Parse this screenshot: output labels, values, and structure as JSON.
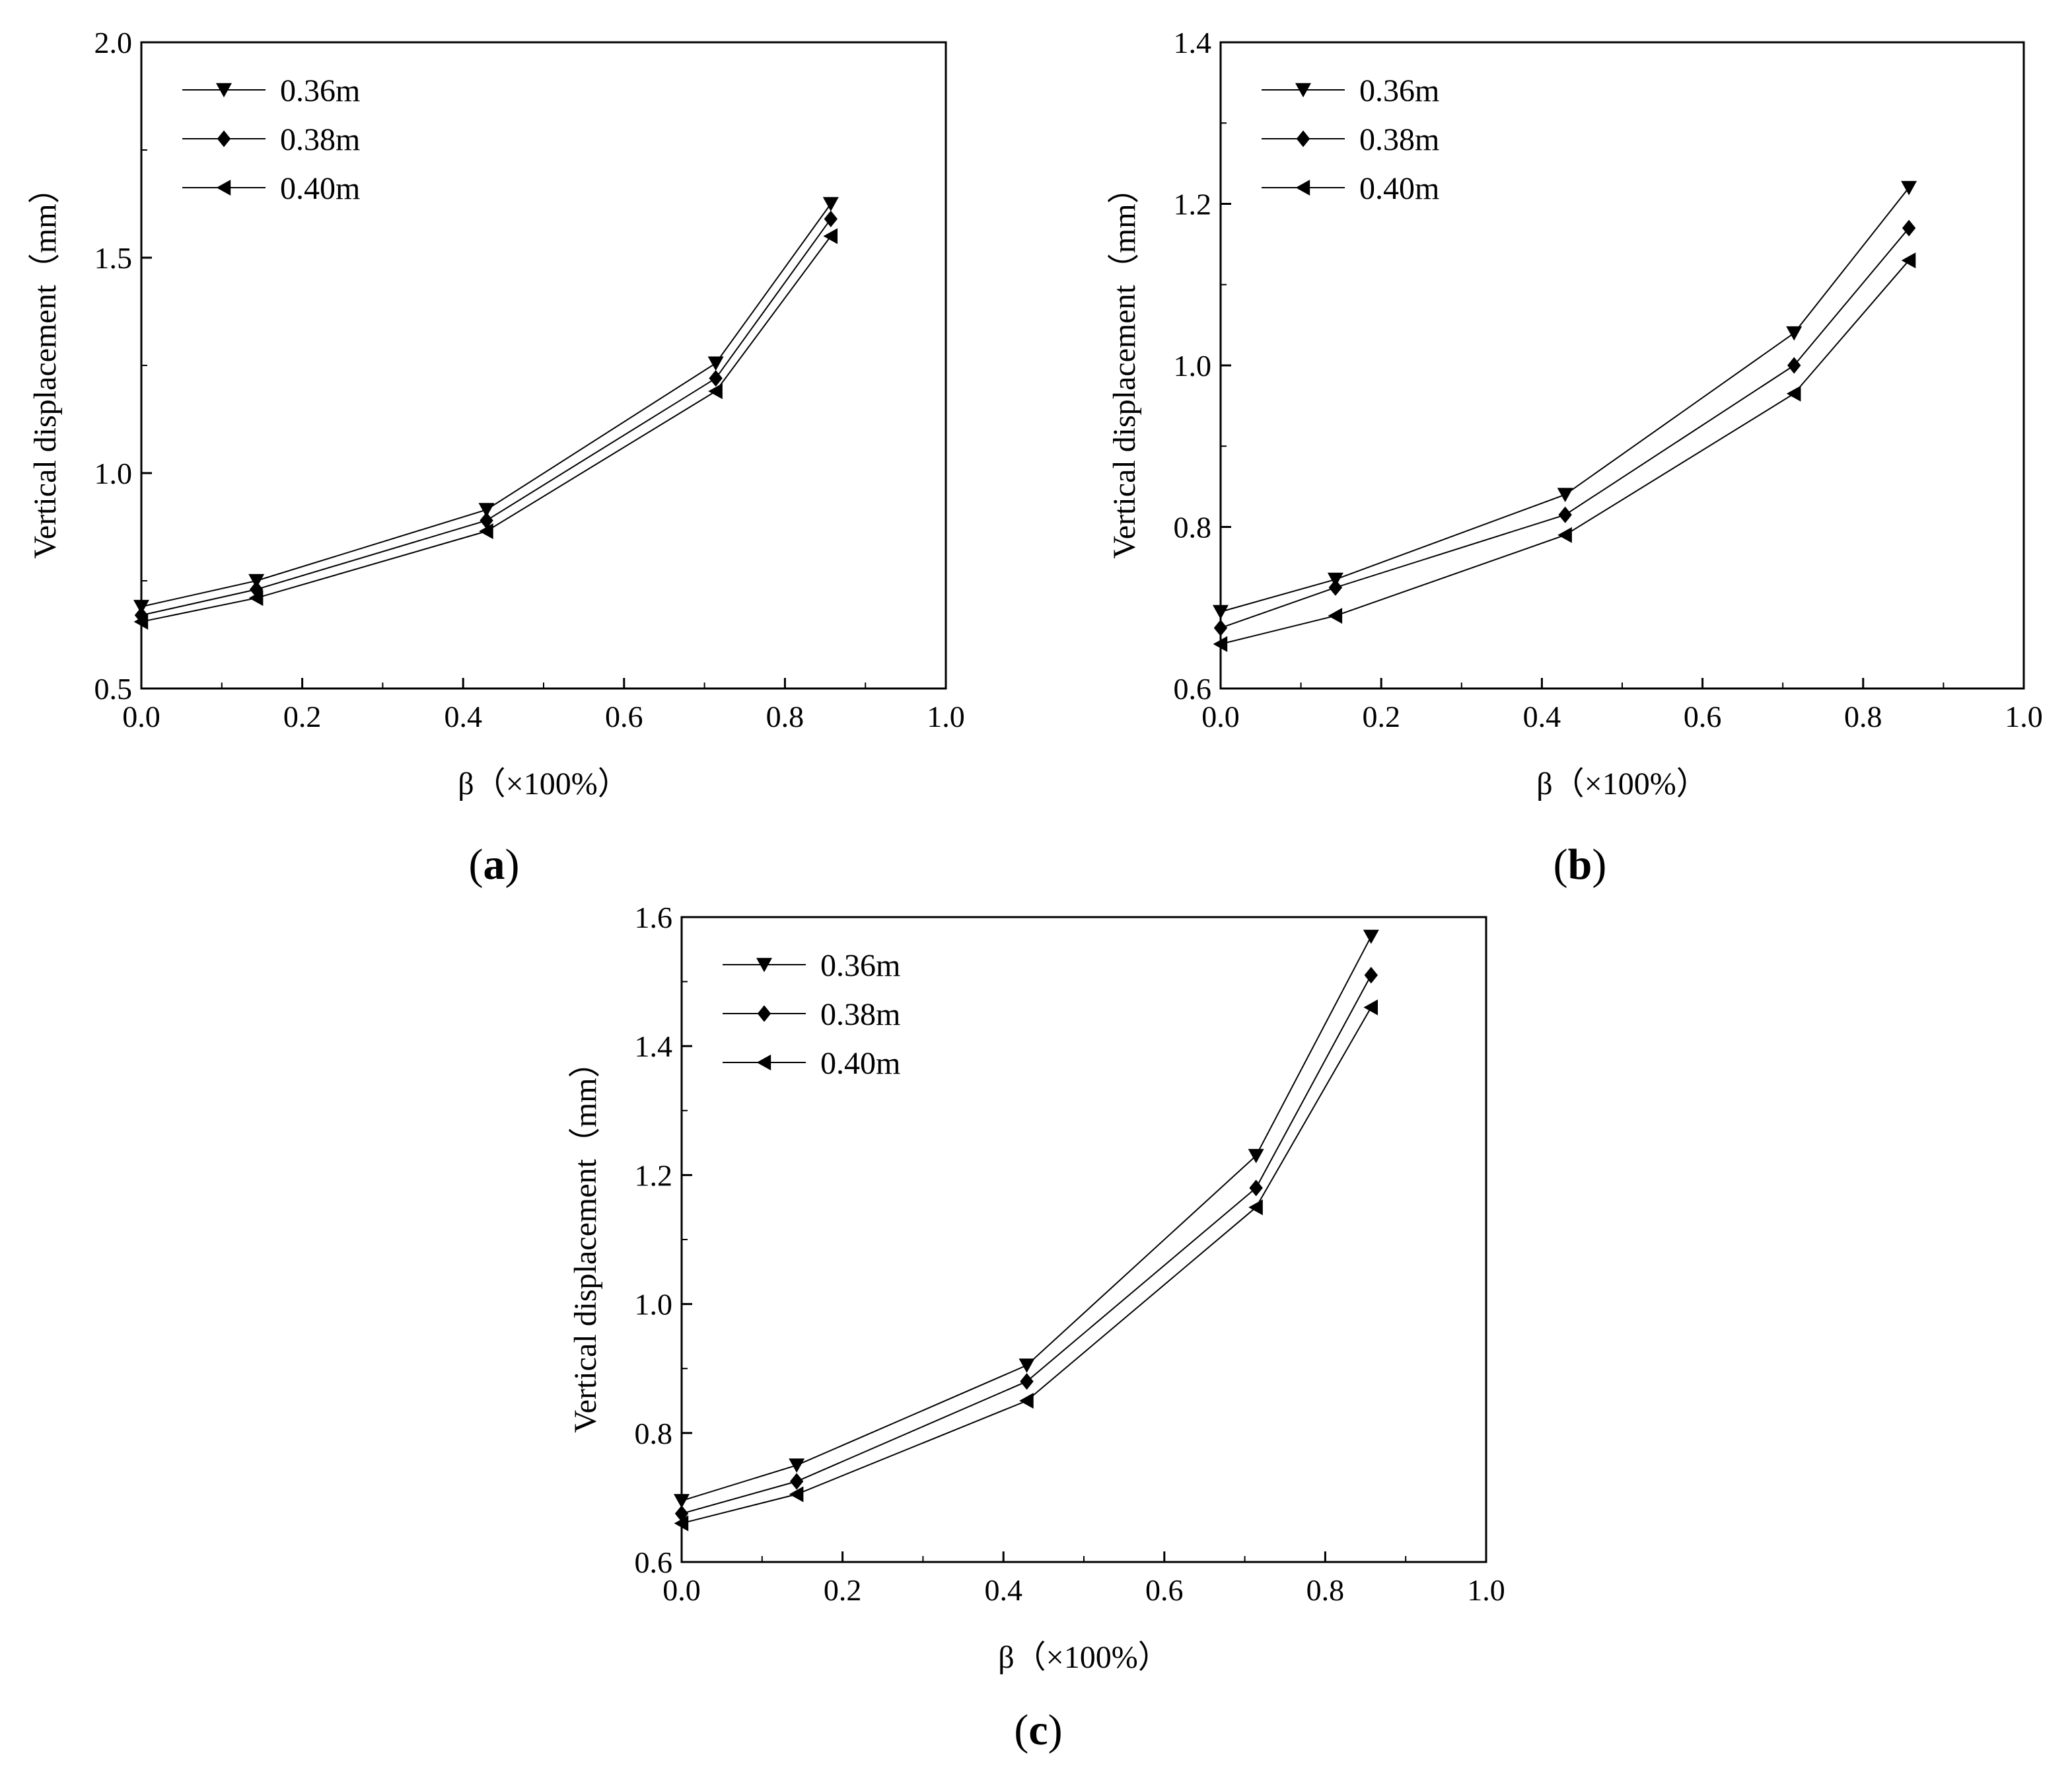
{
  "colors": {
    "line": "#000000",
    "marker": "#000000",
    "background": "#ffffff"
  },
  "chart_data": [
    {
      "type": "line",
      "panel_label": "a",
      "xlabel": "β（×100%）",
      "ylabel": "Vertical displacement（mm）",
      "xlim": [
        0.0,
        1.0
      ],
      "ylim": [
        0.5,
        2.0
      ],
      "xticks": [
        "0.0",
        "0.2",
        "0.4",
        "0.6",
        "0.8",
        "1.0"
      ],
      "yticks": [
        "0.5",
        "1.0",
        "1.5",
        "2.0"
      ],
      "legend_position": "top-left",
      "x": [
        0.0,
        0.143,
        0.429,
        0.714,
        0.857
      ],
      "series": [
        {
          "name": "0.36m",
          "marker": "triangle-down",
          "values": [
            0.69,
            0.75,
            0.915,
            1.255,
            1.625
          ]
        },
        {
          "name": "0.38m",
          "marker": "diamond",
          "values": [
            0.67,
            0.73,
            0.89,
            1.22,
            1.59
          ]
        },
        {
          "name": "0.40m",
          "marker": "triangle-left",
          "values": [
            0.655,
            0.71,
            0.865,
            1.19,
            1.55
          ]
        }
      ]
    },
    {
      "type": "line",
      "panel_label": "b",
      "xlabel": "β（×100%）",
      "ylabel": "Vertical displacement（mm）",
      "xlim": [
        0.0,
        1.0
      ],
      "ylim": [
        0.6,
        1.4
      ],
      "xticks": [
        "0.0",
        "0.2",
        "0.4",
        "0.6",
        "0.8",
        "1.0"
      ],
      "yticks": [
        "0.6",
        "0.8",
        "1.0",
        "1.2",
        "1.4"
      ],
      "legend_position": "top-left",
      "x": [
        0.0,
        0.143,
        0.429,
        0.714,
        0.857
      ],
      "series": [
        {
          "name": "0.36m",
          "marker": "triangle-down",
          "values": [
            0.695,
            0.735,
            0.84,
            1.04,
            1.22
          ]
        },
        {
          "name": "0.38m",
          "marker": "diamond",
          "values": [
            0.675,
            0.725,
            0.815,
            1.0,
            1.17
          ]
        },
        {
          "name": "0.40m",
          "marker": "triangle-left",
          "values": [
            0.655,
            0.69,
            0.79,
            0.965,
            1.13
          ]
        }
      ]
    },
    {
      "type": "line",
      "panel_label": "c",
      "xlabel": "β（×100%）",
      "ylabel": "Vertical displacement（mm）",
      "xlim": [
        0.0,
        1.0
      ],
      "ylim": [
        0.6,
        1.6
      ],
      "xticks": [
        "0.0",
        "0.2",
        "0.4",
        "0.6",
        "0.8",
        "1.0"
      ],
      "yticks": [
        "0.6",
        "0.8",
        "1.0",
        "1.2",
        "1.4",
        "1.6"
      ],
      "legend_position": "top-left",
      "x": [
        0.0,
        0.143,
        0.429,
        0.714,
        0.857
      ],
      "series": [
        {
          "name": "0.36m",
          "marker": "triangle-down",
          "values": [
            0.695,
            0.75,
            0.905,
            1.23,
            1.57
          ]
        },
        {
          "name": "0.38m",
          "marker": "diamond",
          "values": [
            0.675,
            0.725,
            0.88,
            1.18,
            1.51
          ]
        },
        {
          "name": "0.40m",
          "marker": "triangle-left",
          "values": [
            0.66,
            0.705,
            0.85,
            1.15,
            1.46
          ]
        }
      ]
    }
  ]
}
